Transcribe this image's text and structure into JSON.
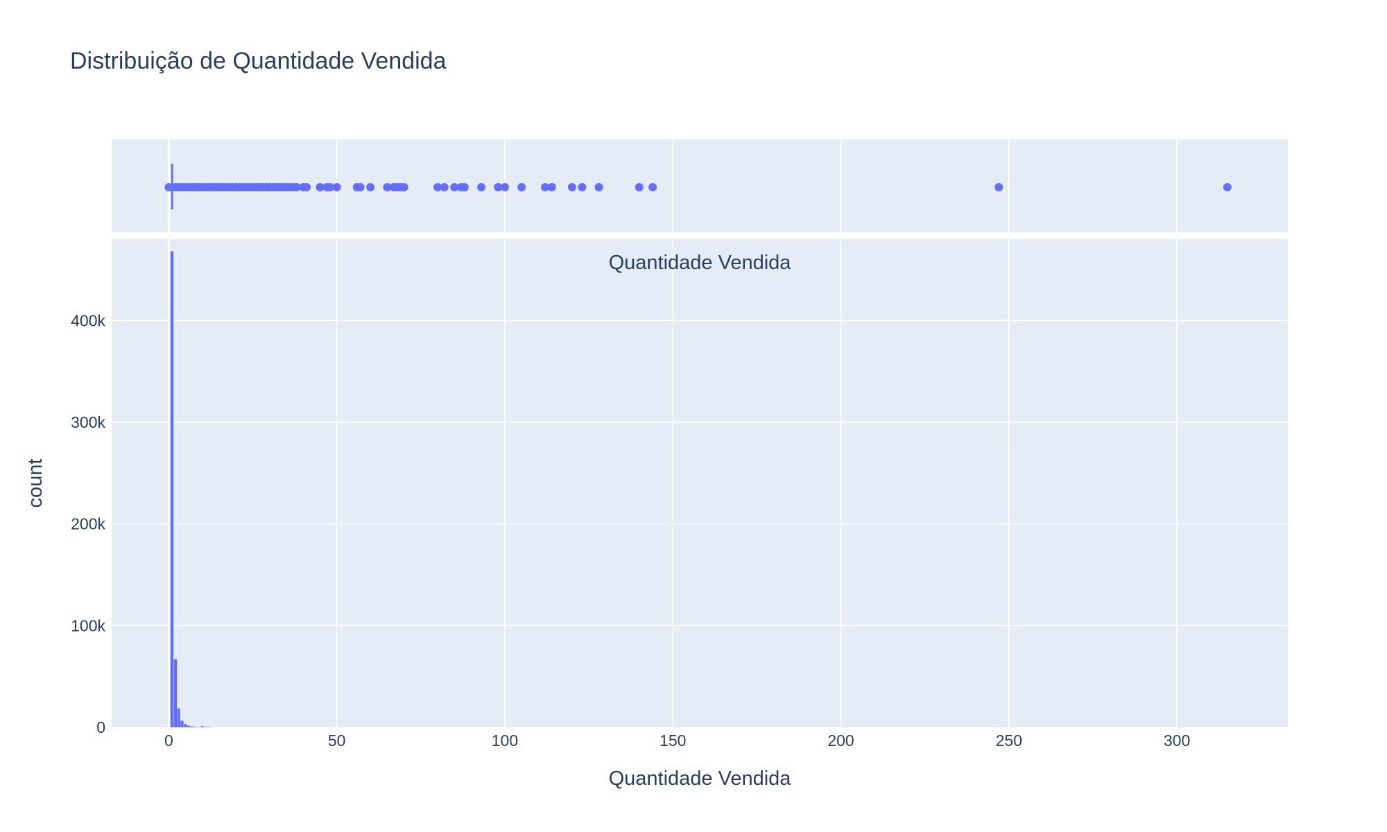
{
  "chart_data": {
    "type": "histogram",
    "title": "Distribuição de Quantidade Vendida",
    "xlabel": "Quantidade Vendida",
    "ylabel": "count",
    "subplot_annotation": "Quantidade Vendida",
    "xlim": [
      -17,
      333
    ],
    "ylim": [
      0,
      480000
    ],
    "x_ticks": [
      0,
      50,
      100,
      150,
      200,
      250,
      300
    ],
    "x_tick_labels": [
      "0",
      "50",
      "100",
      "150",
      "200",
      "250",
      "300"
    ],
    "y_ticks": [
      0,
      100000,
      200000,
      300000,
      400000
    ],
    "y_tick_labels": [
      "0",
      "100k",
      "200k",
      "300k",
      "400k"
    ],
    "grid": true,
    "colors": {
      "bar": "#636efa",
      "plot_bg": "#e5ecf6",
      "grid": "#ffffff",
      "text": "#2a3f5f"
    },
    "histogram_bins": [
      {
        "x0": 0.5,
        "x1": 1.5,
        "count": 468000
      },
      {
        "x0": 1.5,
        "x1": 2.5,
        "count": 67000
      },
      {
        "x0": 2.5,
        "x1": 3.5,
        "count": 18500
      },
      {
        "x0": 3.5,
        "x1": 4.5,
        "count": 6500
      },
      {
        "x0": 4.5,
        "x1": 5.5,
        "count": 3200
      },
      {
        "x0": 5.5,
        "x1": 6.5,
        "count": 1600
      },
      {
        "x0": 6.5,
        "x1": 7.5,
        "count": 900
      },
      {
        "x0": 7.5,
        "x1": 8.5,
        "count": 500
      },
      {
        "x0": 8.5,
        "x1": 9.5,
        "count": 300
      },
      {
        "x0": 9.5,
        "x1": 10.5,
        "count": 1100
      },
      {
        "x0": 10.5,
        "x1": 11.5,
        "count": 200
      },
      {
        "x0": 11.5,
        "x1": 12.5,
        "count": 350
      }
    ],
    "marginal_box": {
      "median": 1,
      "q1": 1,
      "q3": 1,
      "whisker_low": 0,
      "whisker_high": 1,
      "outliers": [
        0,
        2,
        3,
        4,
        5,
        6,
        7,
        8,
        9,
        10,
        11,
        12,
        13,
        14,
        15,
        16,
        17,
        18,
        19,
        20,
        21,
        22,
        23,
        24,
        25,
        26,
        27,
        28,
        29,
        30,
        31,
        32,
        33,
        34,
        35,
        36,
        37,
        38,
        40,
        41,
        45,
        47,
        48,
        50,
        56,
        57,
        60,
        65,
        67,
        68,
        69,
        70,
        80,
        82,
        85,
        87,
        88,
        93,
        98,
        100,
        105,
        112,
        114,
        120,
        123,
        128,
        140,
        144,
        247,
        315
      ]
    }
  }
}
